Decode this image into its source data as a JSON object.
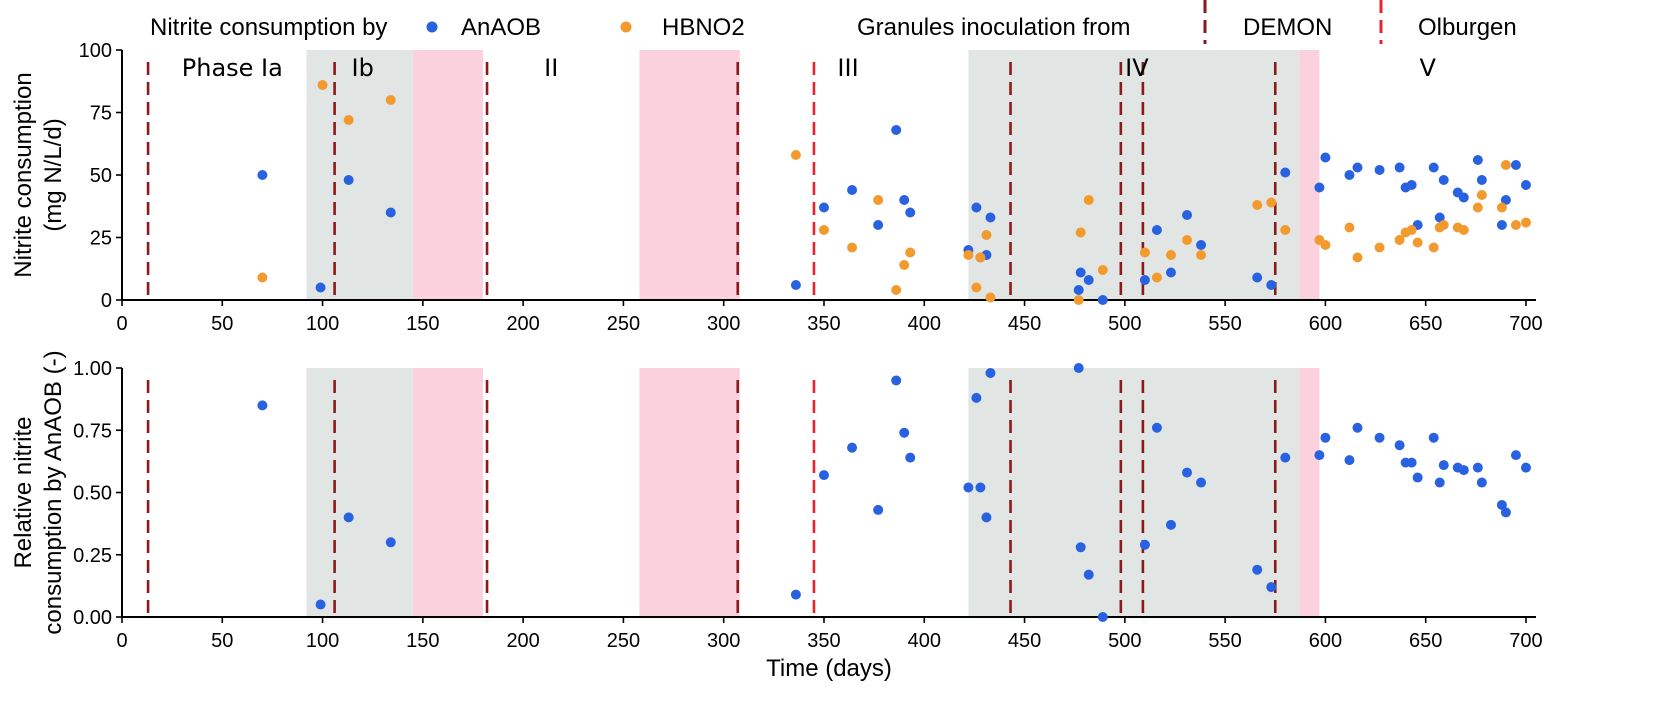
{
  "colors": {
    "anaob": "#2962e0",
    "hbno2": "#f39a2e",
    "demon": "#8b1a1a",
    "olburgen": "#e8222e",
    "grey_band": "#e1e6e4",
    "pink_band": "#fad1dd"
  },
  "legend": {
    "consumption_label": "Nitrite consumption by",
    "anaob_label": "AnAOB",
    "hbno2_label": "HBNO2",
    "granules_label": "Granules inoculation from",
    "demon_label": "DEMON",
    "olburgen_label": "Olburgen"
  },
  "chart_data": [
    {
      "type": "scatter",
      "ylabel": "Nitrite consumption (mg N/L/d)",
      "ylabel_lines": [
        "Nitrite consumption",
        "(mg N/L/d)"
      ],
      "xlabel": "",
      "xlim": [
        0,
        705
      ],
      "ylim": [
        0,
        100
      ],
      "x_ticks": [
        0,
        50,
        100,
        150,
        200,
        250,
        300,
        350,
        400,
        450,
        500,
        550,
        600,
        650,
        700
      ],
      "y_ticks": [
        0,
        25,
        50,
        75,
        100
      ],
      "y_tick_labels": [
        "0",
        "25",
        "50",
        "75",
        "100"
      ],
      "phase_labels": [
        {
          "text": "Phase Ia",
          "x": 55
        },
        {
          "text": "Ib",
          "x": 120
        },
        {
          "text": "II",
          "x": 214
        },
        {
          "text": "III",
          "x": 362
        },
        {
          "text": "IV",
          "x": 506
        },
        {
          "text": "V",
          "x": 651
        }
      ],
      "series": [
        {
          "name": "AnAOB",
          "points": [
            [
              70,
              50
            ],
            [
              99,
              5
            ],
            [
              113,
              48
            ],
            [
              134,
              35
            ],
            [
              336,
              6
            ],
            [
              350,
              37
            ],
            [
              364,
              44
            ],
            [
              377,
              30
            ],
            [
              386,
              68
            ],
            [
              390,
              40
            ],
            [
              393,
              35
            ],
            [
              422,
              20
            ],
            [
              426,
              37
            ],
            [
              428,
              17
            ],
            [
              431,
              18
            ],
            [
              433,
              33
            ],
            [
              477,
              4
            ],
            [
              478,
              11
            ],
            [
              482,
              8
            ],
            [
              489,
              0
            ],
            [
              510,
              8
            ],
            [
              516,
              28
            ],
            [
              523,
              11
            ],
            [
              531,
              34
            ],
            [
              538,
              22
            ],
            [
              566,
              9
            ],
            [
              573,
              6
            ],
            [
              580,
              51
            ],
            [
              597,
              45
            ],
            [
              600,
              57
            ],
            [
              612,
              50
            ],
            [
              616,
              53
            ],
            [
              627,
              52
            ],
            [
              637,
              53
            ],
            [
              640,
              45
            ],
            [
              643,
              46
            ],
            [
              646,
              30
            ],
            [
              654,
              53
            ],
            [
              657,
              33
            ],
            [
              659,
              48
            ],
            [
              666,
              43
            ],
            [
              669,
              41
            ],
            [
              676,
              56
            ],
            [
              678,
              48
            ],
            [
              688,
              30
            ],
            [
              690,
              40
            ],
            [
              695,
              54
            ],
            [
              700,
              46
            ]
          ]
        },
        {
          "name": "HBNO2",
          "points": [
            [
              70,
              9
            ],
            [
              100,
              86
            ],
            [
              113,
              72
            ],
            [
              134,
              80
            ],
            [
              336,
              58
            ],
            [
              350,
              28
            ],
            [
              364,
              21
            ],
            [
              377,
              40
            ],
            [
              386,
              4
            ],
            [
              390,
              14
            ],
            [
              393,
              19
            ],
            [
              422,
              18
            ],
            [
              426,
              5
            ],
            [
              428,
              17
            ],
            [
              431,
              26
            ],
            [
              433,
              1
            ],
            [
              477,
              0
            ],
            [
              478,
              27
            ],
            [
              482,
              40
            ],
            [
              489,
              12
            ],
            [
              510,
              19
            ],
            [
              516,
              9
            ],
            [
              523,
              18
            ],
            [
              531,
              24
            ],
            [
              538,
              18
            ],
            [
              566,
              38
            ],
            [
              573,
              39
            ],
            [
              580,
              28
            ],
            [
              597,
              24
            ],
            [
              600,
              22
            ],
            [
              612,
              29
            ],
            [
              616,
              17
            ],
            [
              627,
              21
            ],
            [
              637,
              24
            ],
            [
              640,
              27
            ],
            [
              643,
              28
            ],
            [
              646,
              23
            ],
            [
              654,
              21
            ],
            [
              657,
              29
            ],
            [
              659,
              30
            ],
            [
              666,
              29
            ],
            [
              669,
              28
            ],
            [
              676,
              37
            ],
            [
              678,
              42
            ],
            [
              688,
              37
            ],
            [
              690,
              54
            ],
            [
              695,
              30
            ],
            [
              700,
              31
            ]
          ]
        }
      ]
    },
    {
      "type": "scatter",
      "ylabel": "Relative nitrite consumption by AnAOB (-)",
      "ylabel_lines": [
        "Relative nitrite",
        "consumption by AnAOB (-)"
      ],
      "xlabel": "Time (days)",
      "xlim": [
        0,
        705
      ],
      "ylim": [
        0,
        1
      ],
      "x_ticks": [
        0,
        50,
        100,
        150,
        200,
        250,
        300,
        350,
        400,
        450,
        500,
        550,
        600,
        650,
        700
      ],
      "y_ticks": [
        0,
        0.25,
        0.5,
        0.75,
        1.0
      ],
      "y_tick_labels": [
        "0.00",
        "0.25",
        "0.50",
        "0.75",
        "1.00"
      ],
      "series": [
        {
          "name": "AnAOB",
          "points": [
            [
              70,
              0.85
            ],
            [
              99,
              0.05
            ],
            [
              113,
              0.4
            ],
            [
              134,
              0.3
            ],
            [
              336,
              0.09
            ],
            [
              350,
              0.57
            ],
            [
              364,
              0.68
            ],
            [
              377,
              0.43
            ],
            [
              386,
              0.95
            ],
            [
              390,
              0.74
            ],
            [
              393,
              0.64
            ],
            [
              422,
              0.52
            ],
            [
              426,
              0.88
            ],
            [
              428,
              0.52
            ],
            [
              431,
              0.4
            ],
            [
              433,
              0.98
            ],
            [
              477,
              1.0
            ],
            [
              478,
              0.28
            ],
            [
              482,
              0.17
            ],
            [
              489,
              0.0
            ],
            [
              510,
              0.29
            ],
            [
              516,
              0.76
            ],
            [
              523,
              0.37
            ],
            [
              531,
              0.58
            ],
            [
              538,
              0.54
            ],
            [
              566,
              0.19
            ],
            [
              573,
              0.12
            ],
            [
              580,
              0.64
            ],
            [
              597,
              0.65
            ],
            [
              600,
              0.72
            ],
            [
              612,
              0.63
            ],
            [
              616,
              0.76
            ],
            [
              627,
              0.72
            ],
            [
              637,
              0.69
            ],
            [
              640,
              0.62
            ],
            [
              643,
              0.62
            ],
            [
              646,
              0.56
            ],
            [
              654,
              0.72
            ],
            [
              657,
              0.54
            ],
            [
              659,
              0.61
            ],
            [
              666,
              0.6
            ],
            [
              669,
              0.59
            ],
            [
              676,
              0.6
            ],
            [
              678,
              0.54
            ],
            [
              688,
              0.45
            ],
            [
              690,
              0.42
            ],
            [
              695,
              0.65
            ],
            [
              700,
              0.6
            ]
          ]
        }
      ]
    }
  ],
  "bands": {
    "grey": [
      [
        92,
        145
      ],
      [
        422,
        587
      ]
    ],
    "pink": [
      [
        145,
        180
      ],
      [
        258,
        308
      ],
      [
        587,
        597
      ]
    ]
  },
  "inoculations": {
    "demon": [
      13,
      106,
      182,
      307,
      443,
      498,
      509,
      575
    ],
    "olburgen": [
      345
    ]
  }
}
